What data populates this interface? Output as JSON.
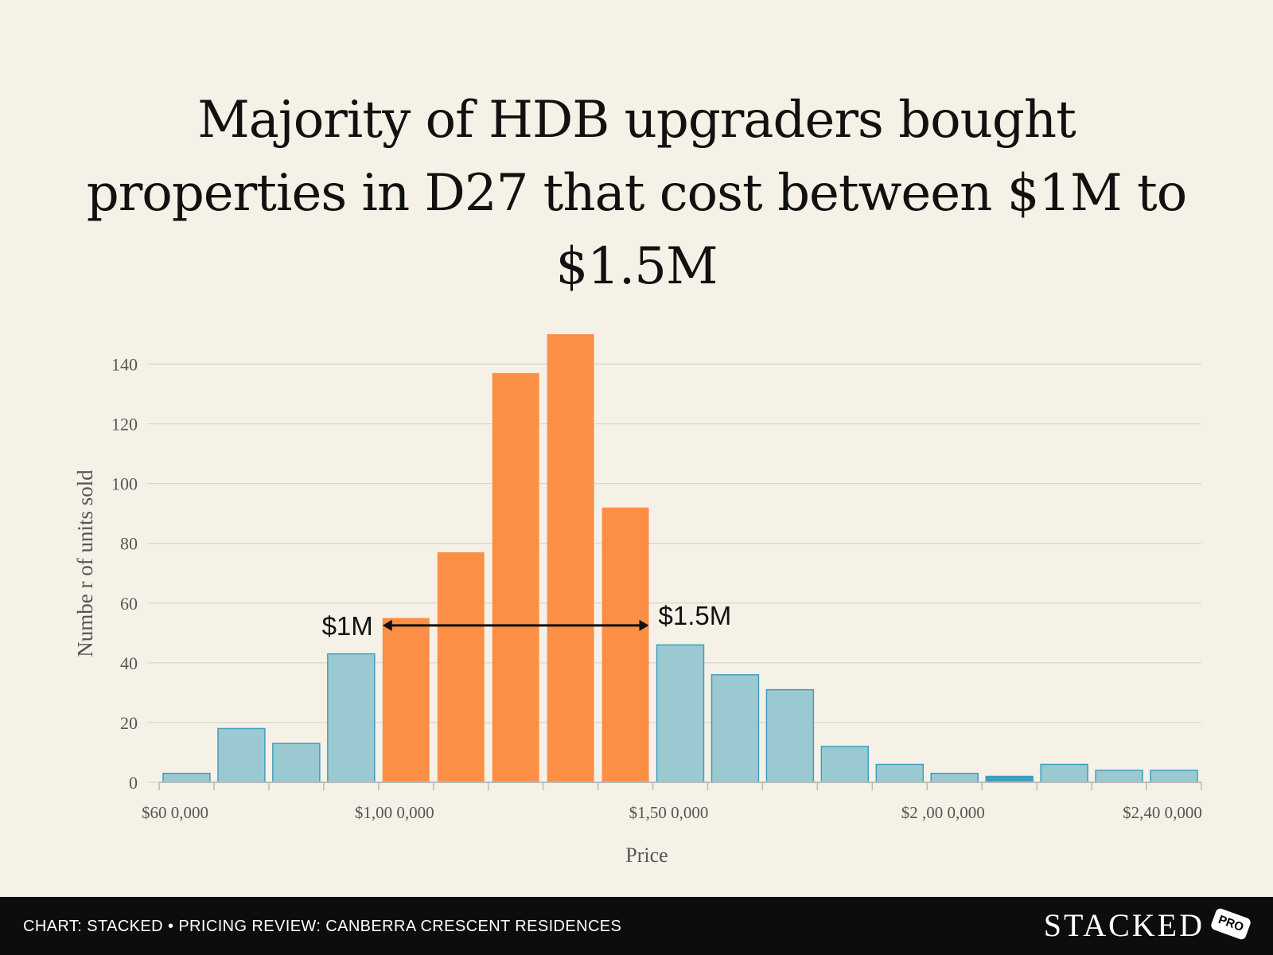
{
  "chart_data": {
    "type": "bar",
    "title": "Majority of HDB upgraders bought properties in D27 that cost between $1M to $1.5M",
    "xlabel": "Price",
    "ylabel": "Numbe r of units sold",
    "ylim": [
      0,
      150
    ],
    "yticks": [
      "0",
      "20",
      "40",
      "60",
      "80",
      "100",
      "120",
      "140"
    ],
    "xtick_labels": [
      {
        "label": "$60 0,000",
        "value": 600000
      },
      {
        "label": "$1,00 0,000",
        "value": 1000000
      },
      {
        "label": "$1,50 0,000",
        "value": 1500000
      },
      {
        "label": "$2 ,00 0,000",
        "value": 2000000
      },
      {
        "label": "$2,40 0,000",
        "value": 2400000
      }
    ],
    "bin_width": 100000,
    "bins": [
      {
        "start": 600000,
        "value": 3,
        "highlight": false
      },
      {
        "start": 700000,
        "value": 18,
        "highlight": false
      },
      {
        "start": 800000,
        "value": 13,
        "highlight": false
      },
      {
        "start": 900000,
        "value": 43,
        "highlight": false
      },
      {
        "start": 1000000,
        "value": 55,
        "highlight": true
      },
      {
        "start": 1100000,
        "value": 77,
        "highlight": true
      },
      {
        "start": 1200000,
        "value": 137,
        "highlight": true
      },
      {
        "start": 1300000,
        "value": 150,
        "highlight": true
      },
      {
        "start": 1400000,
        "value": 92,
        "highlight": true
      },
      {
        "start": 1500000,
        "value": 46,
        "highlight": false
      },
      {
        "start": 1600000,
        "value": 36,
        "highlight": false
      },
      {
        "start": 1700000,
        "value": 31,
        "highlight": false
      },
      {
        "start": 1800000,
        "value": 12,
        "highlight": false
      },
      {
        "start": 1900000,
        "value": 6,
        "highlight": false
      },
      {
        "start": 2000000,
        "value": 3,
        "highlight": false
      },
      {
        "start": 2100000,
        "value": 2,
        "highlight": false
      },
      {
        "start": 2200000,
        "value": 6,
        "highlight": false
      },
      {
        "start": 2300000,
        "value": 4,
        "highlight": false
      },
      {
        "start": 2400000,
        "value": 4,
        "highlight": false
      }
    ],
    "annotation": {
      "left_label": "$1M",
      "right_label": "$1.5M",
      "from": 1000000,
      "to": 1500000,
      "y": 52
    },
    "colors": {
      "highlight": "#fb8f46",
      "base": "#9bc9d2",
      "base_stroke": "#3f9fbd",
      "accent_bar": "#3f9fbd",
      "grid": "#cfcfcf"
    },
    "grid": true
  },
  "footer": {
    "source": "CHART: STACKED • PRICING REVIEW: CANBERRA CRESCENT RESIDENCES",
    "brand": "STACKED",
    "badge": "PRO"
  }
}
